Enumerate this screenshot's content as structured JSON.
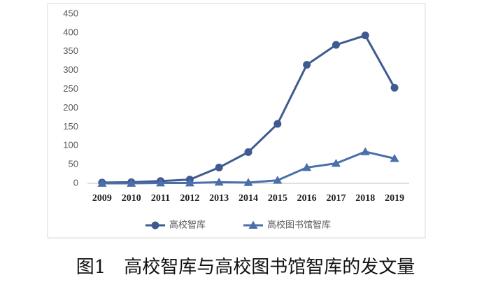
{
  "chart_data": {
    "type": "line",
    "caption": "图1　高校智库与高校图书馆智库的发文量",
    "categories": [
      "2009",
      "2010",
      "2011",
      "2012",
      "2013",
      "2014",
      "2015",
      "2016",
      "2017",
      "2018",
      "2019"
    ],
    "series": [
      {
        "name": "高校智库",
        "color": "#3f5a8f",
        "marker": "circle",
        "values": [
          2,
          3,
          6,
          10,
          42,
          83,
          158,
          315,
          368,
          393,
          254
        ]
      },
      {
        "name": "高校图书馆智库",
        "color": "#4a6faa",
        "marker": "triangle",
        "values": [
          0,
          0,
          1,
          1,
          3,
          2,
          8,
          42,
          53,
          84,
          66
        ]
      }
    ],
    "ylim": [
      0,
      450
    ],
    "yticks": [
      0,
      50,
      100,
      150,
      200,
      250,
      300,
      350,
      400,
      450
    ],
    "grid": false,
    "legend": "bottom"
  }
}
